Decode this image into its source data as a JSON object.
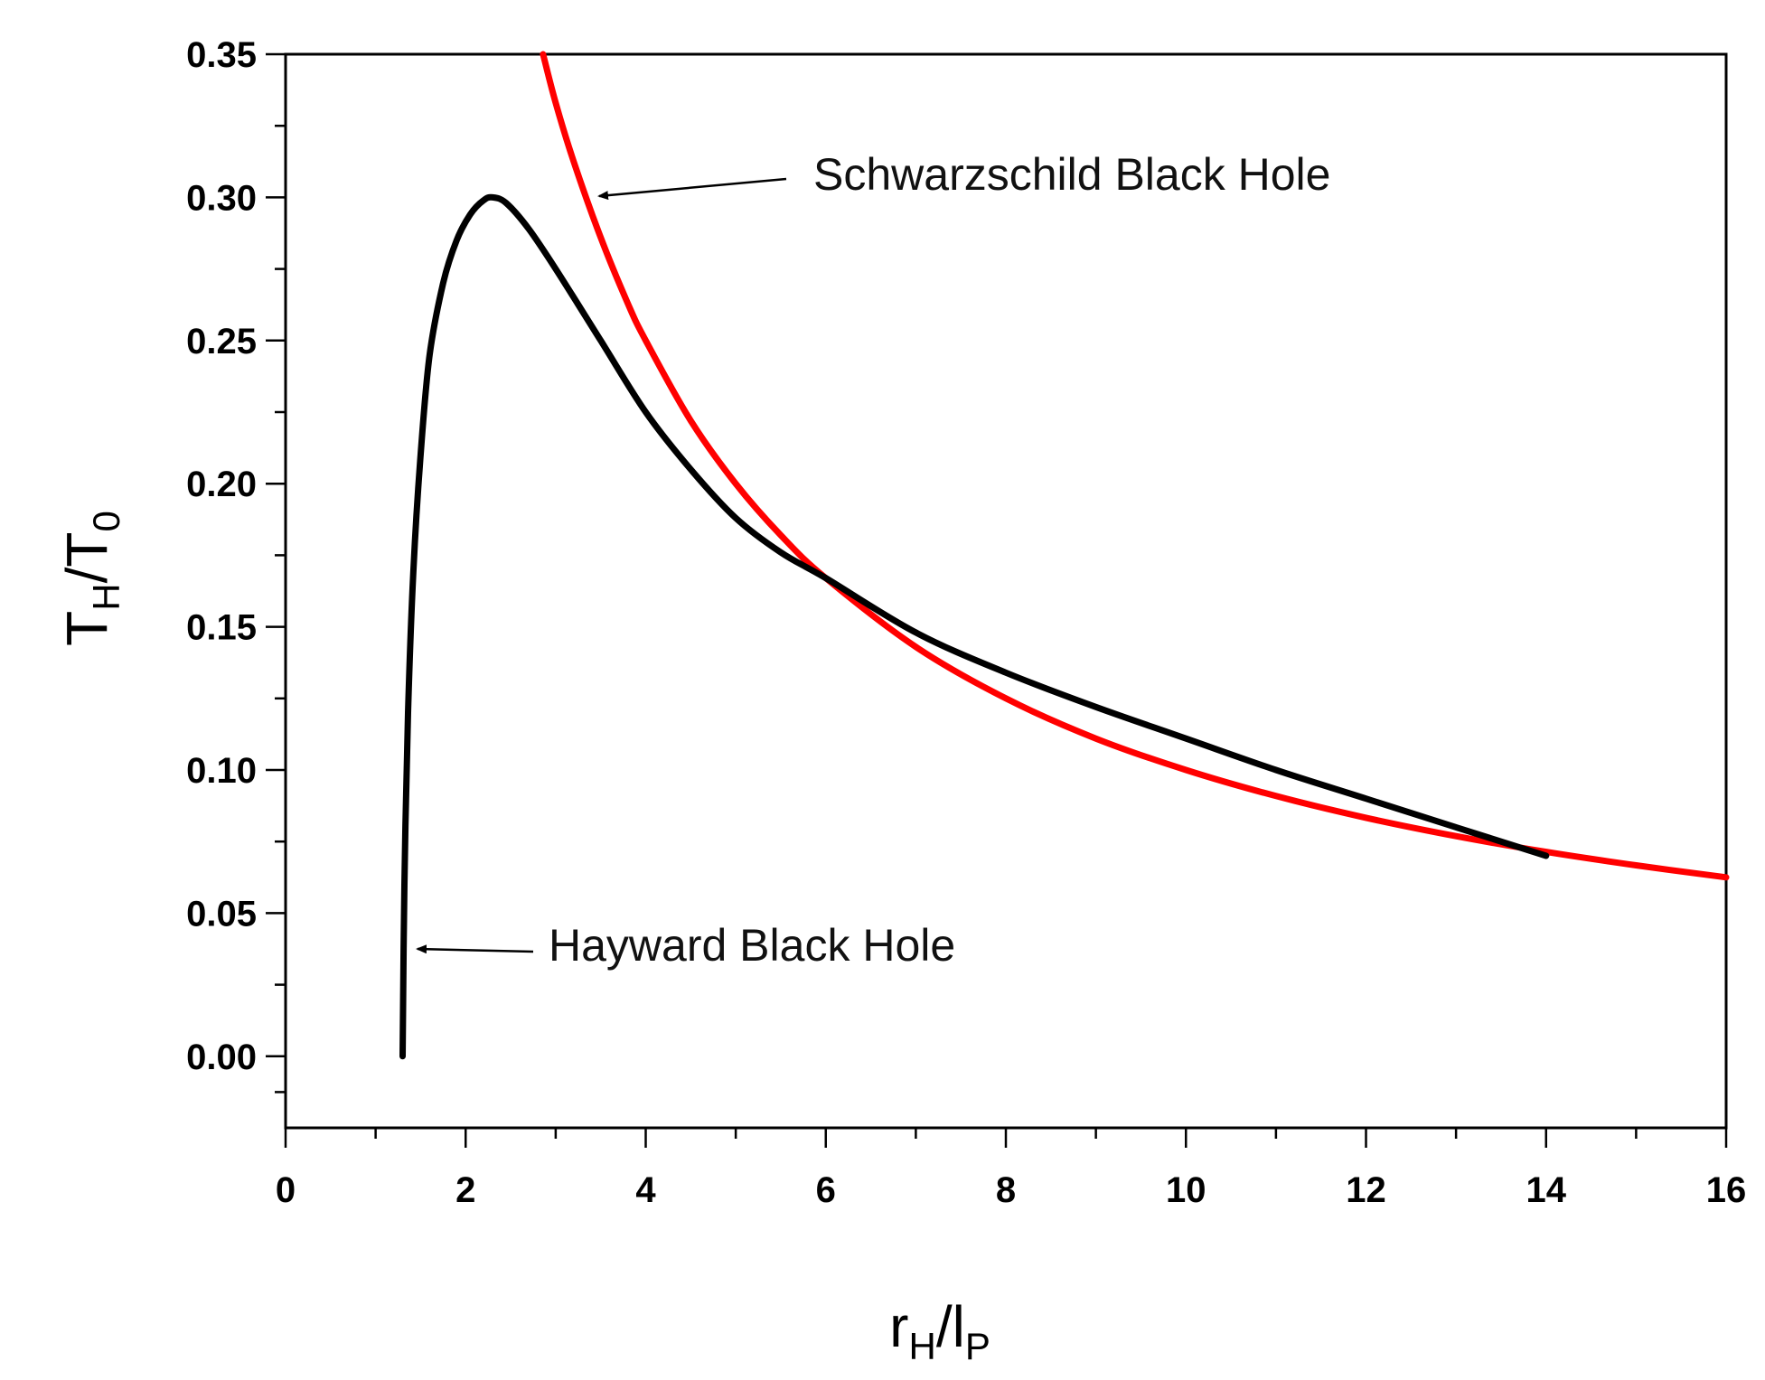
{
  "chart_data": {
    "type": "line",
    "xlim": [
      0,
      16
    ],
    "ylim": [
      -0.025,
      0.35
    ],
    "x_ticks": [
      0,
      2,
      4,
      6,
      8,
      10,
      12,
      14,
      16
    ],
    "x_tick_labels": [
      "0",
      "2",
      "4",
      "6",
      "8",
      "10",
      "12",
      "14",
      "16"
    ],
    "y_ticks": [
      0.0,
      0.05,
      0.1,
      0.15,
      0.2,
      0.25,
      0.3,
      0.35
    ],
    "y_tick_labels": [
      "0.00",
      "0.05",
      "0.10",
      "0.15",
      "0.20",
      "0.25",
      "0.30",
      "0.35"
    ],
    "xlabel": {
      "main": "r",
      "sub1": "H",
      "sep": "/l",
      "sub2": "P"
    },
    "ylabel": {
      "main": "T",
      "sub1": "H",
      "sep": "/T",
      "sub2": "0"
    },
    "grid": false,
    "series": [
      {
        "name": "Hayward Black Hole",
        "color": "#000000",
        "x": [
          1.3,
          1.32,
          1.36,
          1.42,
          1.5,
          1.6,
          1.75,
          1.9,
          2.05,
          2.2,
          2.3,
          2.45,
          2.7,
          3.0,
          3.5,
          4.0,
          4.5,
          5.0,
          5.5,
          6.0,
          7.0,
          8.0,
          9.0,
          10.0,
          11.0,
          12.0,
          13.0,
          14.0
        ],
        "y": [
          0.0,
          0.06,
          0.12,
          0.17,
          0.21,
          0.245,
          0.27,
          0.285,
          0.294,
          0.299,
          0.3,
          0.298,
          0.289,
          0.275,
          0.25,
          0.225,
          0.205,
          0.188,
          0.176,
          0.167,
          0.148,
          0.134,
          0.122,
          0.111,
          0.1,
          0.09,
          0.08,
          0.07
        ]
      },
      {
        "name": "Schwarzschild Black Hole",
        "color": "#ff0000",
        "x": [
          2.86,
          3.0,
          3.2,
          3.5,
          3.8,
          4.0,
          4.5,
          5.0,
          5.5,
          6.0,
          7.0,
          8.0,
          9.0,
          10.0,
          11.0,
          12.0,
          13.0,
          14.0,
          15.0,
          16.0
        ],
        "y": [
          0.35,
          0.333,
          0.3125,
          0.286,
          0.263,
          0.25,
          0.222,
          0.2,
          0.182,
          0.167,
          0.143,
          0.125,
          0.111,
          0.1,
          0.0909,
          0.0833,
          0.0769,
          0.0714,
          0.0667,
          0.0625
        ]
      }
    ],
    "annotations": [
      {
        "text": "Schwarzschild Black Hole",
        "points_to": [
          3.4,
          0.301
        ]
      },
      {
        "text": "Hayward Black Hole",
        "points_to": [
          1.45,
          0.0375
        ]
      }
    ]
  }
}
